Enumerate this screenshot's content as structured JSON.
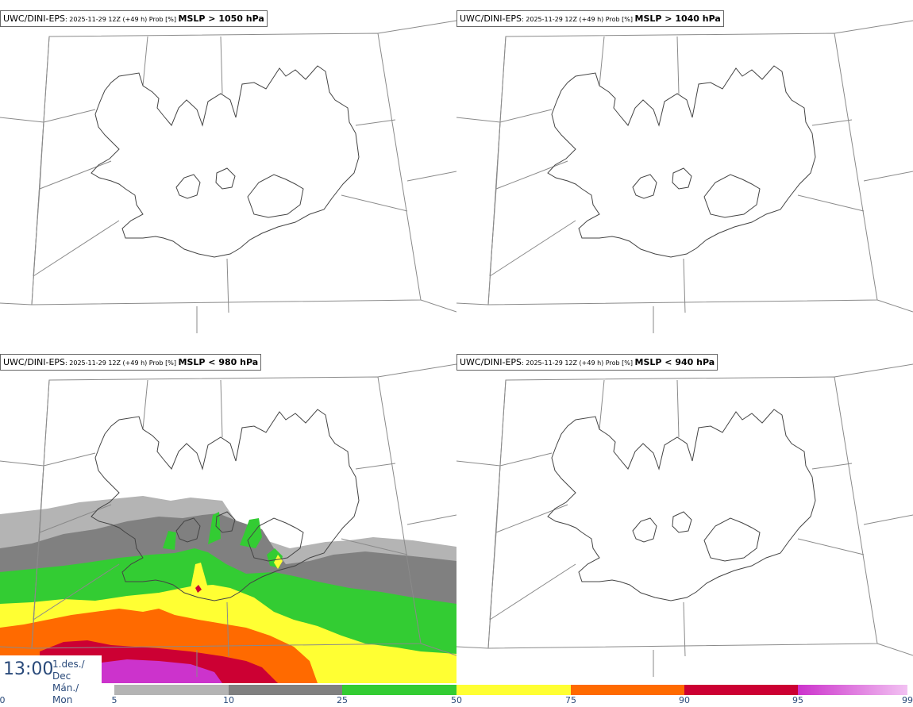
{
  "panels": [
    {
      "model": "UWC/DINI-EPS",
      "meta": ": 2025-11-29 12Z (+49 h) Prob [%] ",
      "param": "MSLP > 1050 hPa"
    },
    {
      "model": "UWC/DINI-EPS",
      "meta": ": 2025-11-29 12Z (+49 h) Prob [%] ",
      "param": "MSLP > 1040 hPa"
    },
    {
      "model": "UWC/DINI-EPS",
      "meta": ": 2025-11-29 12Z (+49 h) Prob [%] ",
      "param": "MSLP < 980 hPa"
    },
    {
      "model": "UWC/DINI-EPS",
      "meta": ": 2025-11-29 12Z (+49 h) Prob [%] ",
      "param": "MSLP < 940 hPa"
    }
  ],
  "time": {
    "clock": "13:00",
    "date_line1": "1.des./ Dec",
    "date_line2": "Mán./ Mon"
  },
  "legend": {
    "ticks": [
      "0",
      "5",
      "10",
      "25",
      "50",
      "75",
      "90",
      "95",
      "99"
    ],
    "colors": [
      "#ffffff",
      "#b4b4b4",
      "#808080",
      "#33cc33",
      "#ffff33",
      "#ff6a00",
      "#cc0033",
      "#cc33cc",
      "#f2c2f2"
    ]
  }
}
